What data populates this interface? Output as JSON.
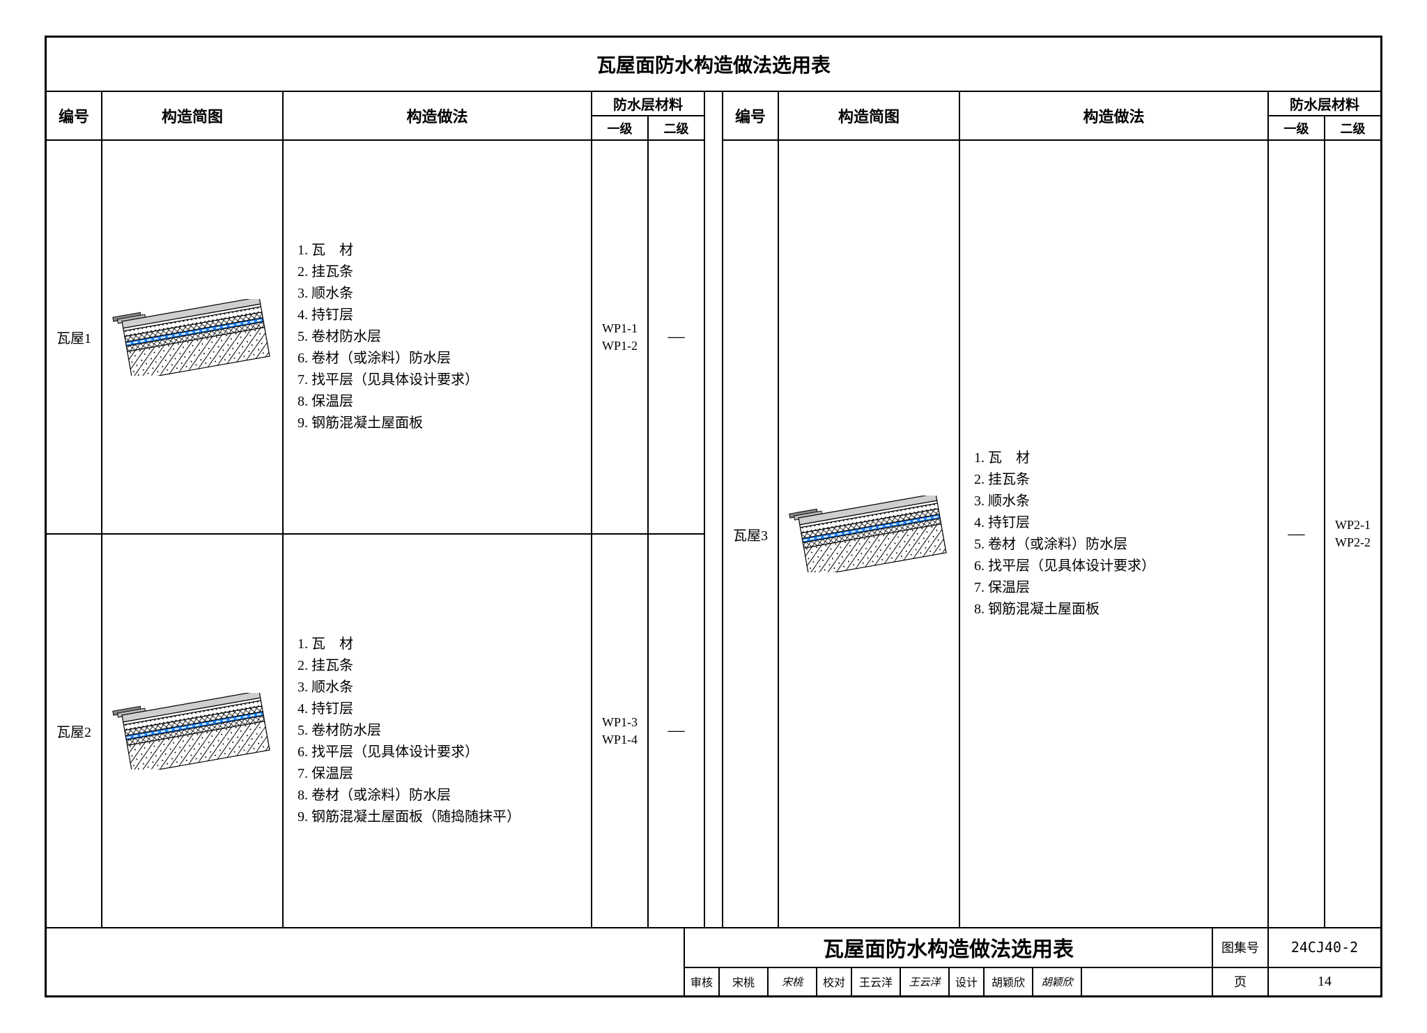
{
  "title": "瓦屋面防水构造做法选用表",
  "headers": {
    "id": "编号",
    "diagram": "构造简图",
    "method": "构造做法",
    "wp_group": "防水层材料",
    "wp_l1": "一级",
    "wp_l2": "二级"
  },
  "diagram_style": {
    "rotation_deg": -10,
    "layers": [
      {
        "name": "tile",
        "fill": "#c9c9c9",
        "pattern": "tile",
        "h": 10
      },
      {
        "name": "batten",
        "fill": "#ffffff",
        "pattern": "none",
        "h": 4
      },
      {
        "name": "dots",
        "fill": "#ffffff",
        "pattern": "dots",
        "h": 8
      },
      {
        "name": "cross",
        "fill": "#ffffff",
        "pattern": "cross",
        "h": 8
      },
      {
        "name": "membrane",
        "fill": "#1d7ef0",
        "pattern": "dash",
        "h": 6
      },
      {
        "name": "hatch2",
        "fill": "#ffffff",
        "pattern": "cross",
        "h": 8
      },
      {
        "name": "concrete",
        "fill": "#ffffff",
        "pattern": "diag",
        "h": 42
      }
    ],
    "stroke": "#000000",
    "stroke_w": 1.2
  },
  "left_rows": [
    {
      "id": "瓦屋1",
      "method": [
        "1. 瓦　材",
        "2. 挂瓦条",
        "3. 顺水条",
        "4. 持钉层",
        "5. 卷材防水层",
        "6. 卷材（或涂料）防水层",
        "7. 找平层（见具体设计要求）",
        "8. 保温层",
        "9. 钢筋混凝土屋面板"
      ],
      "wp_l1": [
        "WP1-1",
        "WP1-2"
      ],
      "wp_l2": [
        "—"
      ]
    },
    {
      "id": "瓦屋2",
      "method": [
        "1. 瓦　材",
        "2. 挂瓦条",
        "3. 顺水条",
        "4. 持钉层",
        "5. 卷材防水层",
        "6. 找平层（见具体设计要求）",
        "7. 保温层",
        "8. 卷材（或涂料）防水层",
        "9. 钢筋混凝土屋面板（随捣随抹平）"
      ],
      "wp_l1": [
        "WP1-3",
        "WP1-4"
      ],
      "wp_l2": [
        "—"
      ]
    }
  ],
  "right_rows": [
    {
      "id": "瓦屋3",
      "method": [
        "1. 瓦　材",
        "2. 挂瓦条",
        "3. 顺水条",
        "4. 持钉层",
        "5. 卷材（或涂料）防水层",
        "6. 找平层（见具体设计要求）",
        "7. 保温层",
        "8. 钢筋混凝土屋面板"
      ],
      "wp_l1": [
        "—"
      ],
      "wp_l2": [
        "WP2-1",
        "WP2-2"
      ]
    }
  ],
  "footer": {
    "block_title": "瓦屋面防水构造做法选用表",
    "set_label": "图集号",
    "set_value": "24CJ40-2",
    "page_label": "页",
    "page_value": "14",
    "signatures": [
      {
        "role": "审核",
        "name": "宋桃",
        "sign": "宋桃"
      },
      {
        "role": "校对",
        "name": "王云洋",
        "sign": "王云洋"
      },
      {
        "role": "设计",
        "name": "胡颖欣",
        "sign": "胡颖欣"
      }
    ]
  }
}
